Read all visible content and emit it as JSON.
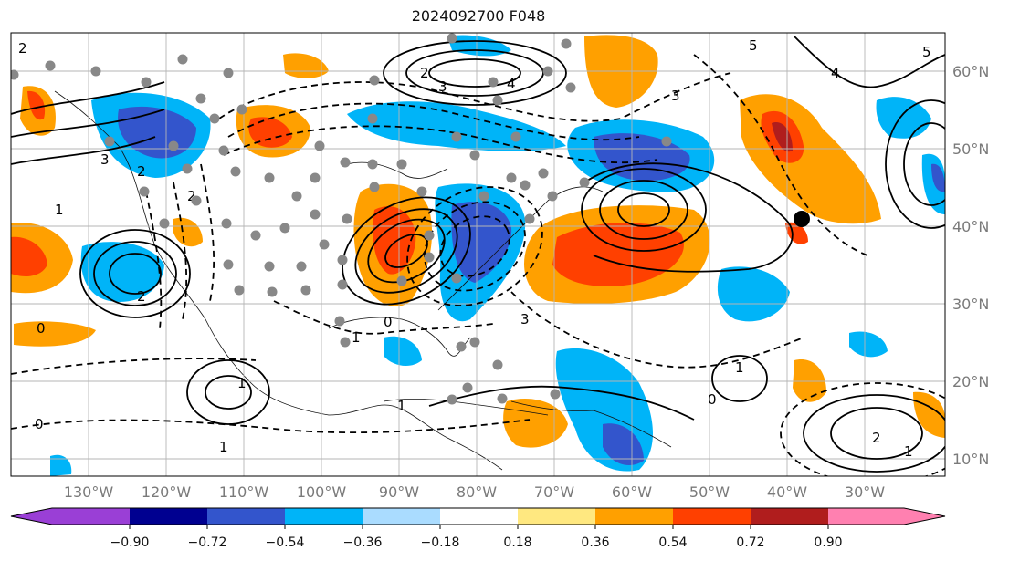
{
  "title": "2024092700 F048",
  "map": {
    "lon_labels": [
      "130°W",
      "120°W",
      "110°W",
      "100°W",
      "90°W",
      "80°W",
      "70°W",
      "60°W",
      "50°W",
      "40°W",
      "30°W"
    ],
    "lat_labels": [
      "60°N",
      "50°N",
      "40°N",
      "30°N",
      "20°N",
      "10°N"
    ],
    "colorbar": {
      "tick_labels": [
        "−0.90",
        "−0.72",
        "−0.54",
        "−0.36",
        "−0.18",
        "0.18",
        "0.36",
        "0.54",
        "0.72",
        "0.90"
      ],
      "colors": [
        "#9a3fd6",
        "#000090",
        "#3355cc",
        "#00b4f8",
        "#aadcff",
        "#ffffff",
        "#ffe880",
        "#ffa000",
        "#ff4000",
        "#b01d1d",
        "#ff80b0"
      ]
    },
    "contour_labels": [
      "2",
      "3",
      "4",
      "5",
      "1",
      "0",
      "2",
      "3",
      "4",
      "5",
      "1",
      "0",
      "2",
      "3",
      "1",
      "2",
      "1",
      "0",
      "1",
      "2",
      "3",
      "1",
      "0",
      "1",
      "2"
    ],
    "feature_colors": {
      "stations": "#888888",
      "marker": "#000000",
      "grid": "#b5b5b5"
    }
  }
}
